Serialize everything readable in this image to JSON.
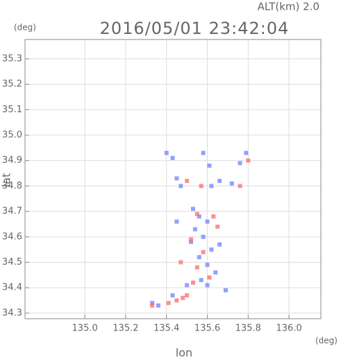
{
  "chart_data": {
    "type": "scatter",
    "title": "2016/05/01 23:42:04",
    "subtitle": "ALT(km) 2.0",
    "x_label": "lon",
    "x_unit": "(deg)",
    "y_label": "lat",
    "y_unit": "(deg)",
    "xlim": [
      134.707,
      136.156
    ],
    "ylim": [
      34.278,
      35.376
    ],
    "xticks": [
      {
        "value": 135,
        "label": "135.0"
      },
      135.2,
      135.4,
      135.6,
      135.8,
      {
        "value": 136,
        "label": "136.0"
      }
    ],
    "yticks": [
      34.3,
      34.4,
      34.5,
      34.6,
      34.7,
      34.8,
      34.9,
      {
        "value": 35,
        "label": "35.0"
      },
      35.1,
      35.2,
      35.3
    ],
    "grid": true,
    "series": [
      {
        "color": "#7080ff",
        "x": [
          135.4,
          135.43,
          135.58,
          135.61,
          135.79,
          135.76,
          135.45,
          135.47,
          135.62,
          135.66,
          135.72,
          135.53,
          135.56,
          135.6,
          135.54,
          135.58,
          135.52,
          135.62,
          135.56,
          135.6,
          135.64,
          135.57,
          135.6,
          135.5,
          135.43,
          135.36,
          135.33,
          135.66,
          135.45,
          135.69
        ],
        "values": [
          34.93,
          34.91,
          34.93,
          34.88,
          34.93,
          34.89,
          34.83,
          34.8,
          34.8,
          34.82,
          34.81,
          34.71,
          34.68,
          34.66,
          34.63,
          34.6,
          34.58,
          34.55,
          34.52,
          34.49,
          34.46,
          34.43,
          34.41,
          34.41,
          34.37,
          34.33,
          34.34,
          34.57,
          34.66,
          34.39
        ]
      },
      {
        "color": "#ff6a6a",
        "x": [
          135.8,
          135.5,
          135.57,
          135.55,
          135.65,
          135.52,
          135.58,
          135.47,
          135.55,
          135.53,
          135.61,
          135.48,
          135.45,
          135.5,
          135.41,
          135.33,
          135.76,
          135.63
        ],
        "values": [
          34.9,
          34.82,
          34.8,
          34.69,
          34.64,
          34.59,
          34.54,
          34.5,
          34.48,
          34.42,
          34.44,
          34.36,
          34.35,
          34.37,
          34.34,
          34.33,
          34.8,
          34.68
        ]
      }
    ]
  }
}
